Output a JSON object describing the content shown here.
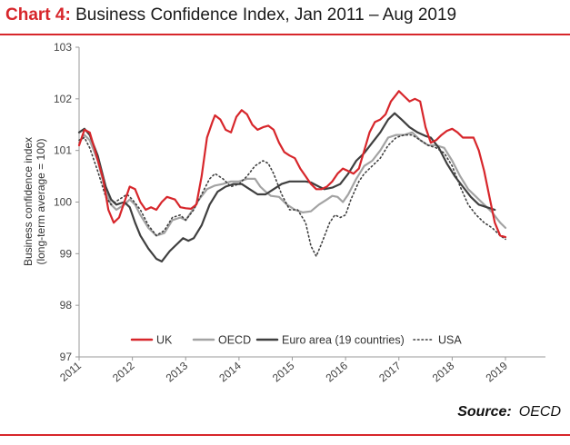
{
  "title": {
    "lead": "Chart 4:",
    "text": "Business Confidence Index, Jan 2011 – Aug 2019"
  },
  "source": {
    "label": "Source:",
    "value": "OECD"
  },
  "chart_data": {
    "type": "line",
    "ylabel_line1": "Business confidence index",
    "ylabel_line2": "(long-term average = 100)",
    "ylim": [
      97,
      103
    ],
    "yticks": [
      97,
      98,
      99,
      100,
      101,
      102,
      103
    ],
    "xlim": [
      2011,
      2019.75
    ],
    "xticks": [
      2011,
      2012,
      2013,
      2014,
      2015,
      2016,
      2017,
      2018,
      2019
    ],
    "grid": false,
    "legend_position": "bottom-center",
    "series": [
      {
        "name": "UK",
        "color": "#d7262b",
        "style": "solid",
        "points": [
          [
            2011.0,
            101.1
          ],
          [
            2011.1,
            101.4
          ],
          [
            2011.2,
            101.35
          ],
          [
            2011.3,
            101.0
          ],
          [
            2011.45,
            100.45
          ],
          [
            2011.55,
            99.85
          ],
          [
            2011.65,
            99.6
          ],
          [
            2011.75,
            99.7
          ],
          [
            2011.85,
            100.0
          ],
          [
            2011.95,
            100.3
          ],
          [
            2012.05,
            100.25
          ],
          [
            2012.15,
            100.0
          ],
          [
            2012.25,
            99.85
          ],
          [
            2012.35,
            99.9
          ],
          [
            2012.45,
            99.85
          ],
          [
            2012.55,
            100.0
          ],
          [
            2012.65,
            100.1
          ],
          [
            2012.8,
            100.05
          ],
          [
            2012.9,
            99.9
          ],
          [
            2013.0,
            99.88
          ],
          [
            2013.1,
            99.87
          ],
          [
            2013.2,
            99.95
          ],
          [
            2013.3,
            100.5
          ],
          [
            2013.4,
            101.25
          ],
          [
            2013.5,
            101.55
          ],
          [
            2013.55,
            101.68
          ],
          [
            2013.65,
            101.6
          ],
          [
            2013.75,
            101.4
          ],
          [
            2013.85,
            101.35
          ],
          [
            2013.95,
            101.65
          ],
          [
            2014.05,
            101.78
          ],
          [
            2014.15,
            101.7
          ],
          [
            2014.25,
            101.5
          ],
          [
            2014.35,
            101.4
          ],
          [
            2014.45,
            101.45
          ],
          [
            2014.55,
            101.48
          ],
          [
            2014.65,
            101.4
          ],
          [
            2014.75,
            101.15
          ],
          [
            2014.85,
            100.97
          ],
          [
            2014.95,
            100.9
          ],
          [
            2015.05,
            100.85
          ],
          [
            2015.15,
            100.65
          ],
          [
            2015.25,
            100.5
          ],
          [
            2015.35,
            100.35
          ],
          [
            2015.45,
            100.25
          ],
          [
            2015.55,
            100.25
          ],
          [
            2015.65,
            100.3
          ],
          [
            2015.75,
            100.4
          ],
          [
            2015.85,
            100.55
          ],
          [
            2015.95,
            100.65
          ],
          [
            2016.05,
            100.6
          ],
          [
            2016.15,
            100.55
          ],
          [
            2016.25,
            100.65
          ],
          [
            2016.35,
            101.0
          ],
          [
            2016.45,
            101.35
          ],
          [
            2016.55,
            101.55
          ],
          [
            2016.65,
            101.6
          ],
          [
            2016.75,
            101.7
          ],
          [
            2016.85,
            101.95
          ],
          [
            2016.95,
            102.08
          ],
          [
            2017.0,
            102.15
          ],
          [
            2017.1,
            102.05
          ],
          [
            2017.2,
            101.95
          ],
          [
            2017.3,
            102.0
          ],
          [
            2017.4,
            101.95
          ],
          [
            2017.5,
            101.45
          ],
          [
            2017.6,
            101.15
          ],
          [
            2017.7,
            101.2
          ],
          [
            2017.8,
            101.3
          ],
          [
            2017.9,
            101.38
          ],
          [
            2018.0,
            101.42
          ],
          [
            2018.1,
            101.35
          ],
          [
            2018.2,
            101.25
          ],
          [
            2018.3,
            101.25
          ],
          [
            2018.4,
            101.25
          ],
          [
            2018.5,
            101.0
          ],
          [
            2018.6,
            100.6
          ],
          [
            2018.7,
            100.1
          ],
          [
            2018.8,
            99.6
          ],
          [
            2018.9,
            99.35
          ],
          [
            2019.0,
            99.32
          ]
        ]
      },
      {
        "name": "OECD",
        "color": "#a3a3a3",
        "style": "solid",
        "points": [
          [
            2011.0,
            101.15
          ],
          [
            2011.1,
            101.3
          ],
          [
            2011.2,
            101.2
          ],
          [
            2011.35,
            100.8
          ],
          [
            2011.5,
            100.2
          ],
          [
            2011.6,
            99.95
          ],
          [
            2011.7,
            99.85
          ],
          [
            2011.85,
            99.95
          ],
          [
            2011.95,
            100.05
          ],
          [
            2012.05,
            99.95
          ],
          [
            2012.15,
            99.75
          ],
          [
            2012.3,
            99.5
          ],
          [
            2012.45,
            99.35
          ],
          [
            2012.6,
            99.4
          ],
          [
            2012.75,
            99.65
          ],
          [
            2012.9,
            99.7
          ],
          [
            2013.0,
            99.65
          ],
          [
            2013.1,
            99.8
          ],
          [
            2013.25,
            100.05
          ],
          [
            2013.4,
            100.25
          ],
          [
            2013.55,
            100.32
          ],
          [
            2013.7,
            100.35
          ],
          [
            2013.85,
            100.4
          ],
          [
            2014.0,
            100.4
          ],
          [
            2014.15,
            100.45
          ],
          [
            2014.3,
            100.45
          ],
          [
            2014.4,
            100.3
          ],
          [
            2014.5,
            100.2
          ],
          [
            2014.6,
            100.12
          ],
          [
            2014.75,
            100.1
          ],
          [
            2014.9,
            99.95
          ],
          [
            2015.05,
            99.85
          ],
          [
            2015.2,
            99.8
          ],
          [
            2015.35,
            99.82
          ],
          [
            2015.5,
            99.95
          ],
          [
            2015.65,
            100.05
          ],
          [
            2015.75,
            100.12
          ],
          [
            2015.85,
            100.1
          ],
          [
            2015.95,
            100.0
          ],
          [
            2016.05,
            100.15
          ],
          [
            2016.2,
            100.45
          ],
          [
            2016.35,
            100.7
          ],
          [
            2016.5,
            100.8
          ],
          [
            2016.65,
            101.0
          ],
          [
            2016.8,
            101.25
          ],
          [
            2016.95,
            101.3
          ],
          [
            2017.1,
            101.3
          ],
          [
            2017.25,
            101.35
          ],
          [
            2017.4,
            101.2
          ],
          [
            2017.55,
            101.1
          ],
          [
            2017.7,
            101.1
          ],
          [
            2017.85,
            101.05
          ],
          [
            2018.0,
            100.8
          ],
          [
            2018.15,
            100.5
          ],
          [
            2018.3,
            100.25
          ],
          [
            2018.45,
            100.1
          ],
          [
            2018.6,
            99.95
          ],
          [
            2018.75,
            99.8
          ],
          [
            2018.9,
            99.6
          ],
          [
            2019.0,
            99.5
          ]
        ]
      },
      {
        "name": "Euro area (19 countries)",
        "color": "#3f3f3f",
        "style": "solid",
        "points": [
          [
            2011.0,
            101.35
          ],
          [
            2011.1,
            101.42
          ],
          [
            2011.2,
            101.3
          ],
          [
            2011.35,
            100.9
          ],
          [
            2011.5,
            100.3
          ],
          [
            2011.6,
            100.05
          ],
          [
            2011.7,
            99.95
          ],
          [
            2011.85,
            100.0
          ],
          [
            2011.95,
            99.9
          ],
          [
            2012.05,
            99.6
          ],
          [
            2012.15,
            99.35
          ],
          [
            2012.3,
            99.1
          ],
          [
            2012.45,
            98.9
          ],
          [
            2012.55,
            98.85
          ],
          [
            2012.7,
            99.05
          ],
          [
            2012.85,
            99.2
          ],
          [
            2012.95,
            99.3
          ],
          [
            2013.05,
            99.25
          ],
          [
            2013.15,
            99.3
          ],
          [
            2013.3,
            99.55
          ],
          [
            2013.45,
            99.95
          ],
          [
            2013.6,
            100.2
          ],
          [
            2013.75,
            100.3
          ],
          [
            2013.9,
            100.35
          ],
          [
            2014.05,
            100.35
          ],
          [
            2014.2,
            100.25
          ],
          [
            2014.35,
            100.15
          ],
          [
            2014.5,
            100.15
          ],
          [
            2014.65,
            100.25
          ],
          [
            2014.8,
            100.35
          ],
          [
            2014.95,
            100.4
          ],
          [
            2015.1,
            100.4
          ],
          [
            2015.25,
            100.4
          ],
          [
            2015.35,
            100.38
          ],
          [
            2015.5,
            100.3
          ],
          [
            2015.6,
            100.25
          ],
          [
            2015.75,
            100.28
          ],
          [
            2015.9,
            100.35
          ],
          [
            2016.05,
            100.55
          ],
          [
            2016.2,
            100.8
          ],
          [
            2016.35,
            100.95
          ],
          [
            2016.5,
            101.15
          ],
          [
            2016.65,
            101.35
          ],
          [
            2016.8,
            101.6
          ],
          [
            2016.92,
            101.72
          ],
          [
            2017.05,
            101.6
          ],
          [
            2017.2,
            101.45
          ],
          [
            2017.35,
            101.35
          ],
          [
            2017.5,
            101.28
          ],
          [
            2017.6,
            101.25
          ],
          [
            2017.75,
            101.05
          ],
          [
            2017.9,
            100.75
          ],
          [
            2018.05,
            100.5
          ],
          [
            2018.2,
            100.3
          ],
          [
            2018.35,
            100.1
          ],
          [
            2018.5,
            99.95
          ],
          [
            2018.65,
            99.9
          ],
          [
            2018.8,
            99.85
          ]
        ]
      },
      {
        "name": "USA",
        "color": "#3f3f3f",
        "style": "dotted",
        "points": [
          [
            2011.0,
            101.2
          ],
          [
            2011.1,
            101.25
          ],
          [
            2011.2,
            101.05
          ],
          [
            2011.35,
            100.6
          ],
          [
            2011.5,
            100.1
          ],
          [
            2011.6,
            99.95
          ],
          [
            2011.75,
            100.05
          ],
          [
            2011.9,
            100.15
          ],
          [
            2012.0,
            100.05
          ],
          [
            2012.15,
            99.85
          ],
          [
            2012.3,
            99.55
          ],
          [
            2012.45,
            99.35
          ],
          [
            2012.6,
            99.45
          ],
          [
            2012.75,
            99.7
          ],
          [
            2012.9,
            99.75
          ],
          [
            2013.0,
            99.65
          ],
          [
            2013.15,
            99.85
          ],
          [
            2013.3,
            100.15
          ],
          [
            2013.45,
            100.45
          ],
          [
            2013.55,
            100.55
          ],
          [
            2013.7,
            100.45
          ],
          [
            2013.85,
            100.3
          ],
          [
            2014.0,
            100.35
          ],
          [
            2014.15,
            100.5
          ],
          [
            2014.3,
            100.7
          ],
          [
            2014.45,
            100.8
          ],
          [
            2014.55,
            100.75
          ],
          [
            2014.65,
            100.55
          ],
          [
            2014.8,
            100.15
          ],
          [
            2014.95,
            99.85
          ],
          [
            2015.1,
            99.85
          ],
          [
            2015.25,
            99.6
          ],
          [
            2015.35,
            99.15
          ],
          [
            2015.45,
            98.95
          ],
          [
            2015.55,
            99.2
          ],
          [
            2015.7,
            99.6
          ],
          [
            2015.8,
            99.75
          ],
          [
            2015.9,
            99.7
          ],
          [
            2016.0,
            99.75
          ],
          [
            2016.1,
            100.05
          ],
          [
            2016.25,
            100.4
          ],
          [
            2016.35,
            100.55
          ],
          [
            2016.5,
            100.7
          ],
          [
            2016.65,
            100.85
          ],
          [
            2016.8,
            101.1
          ],
          [
            2016.95,
            101.25
          ],
          [
            2017.1,
            101.3
          ],
          [
            2017.25,
            101.3
          ],
          [
            2017.4,
            101.2
          ],
          [
            2017.55,
            101.1
          ],
          [
            2017.7,
            101.05
          ],
          [
            2017.85,
            100.95
          ],
          [
            2018.0,
            100.7
          ],
          [
            2018.15,
            100.3
          ],
          [
            2018.3,
            99.95
          ],
          [
            2018.45,
            99.75
          ],
          [
            2018.6,
            99.6
          ],
          [
            2018.75,
            99.5
          ],
          [
            2018.9,
            99.35
          ],
          [
            2019.0,
            99.28
          ]
        ]
      }
    ]
  }
}
